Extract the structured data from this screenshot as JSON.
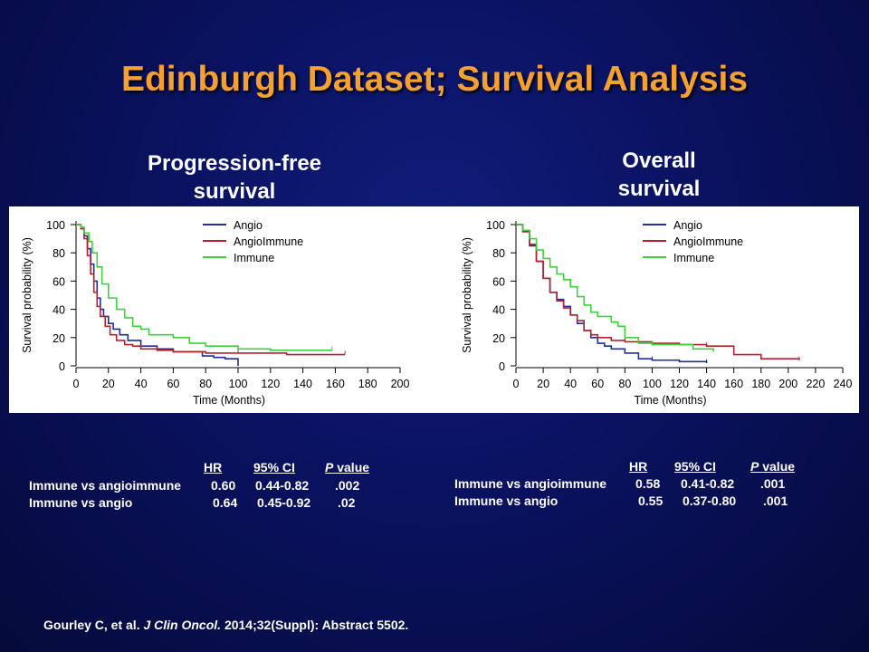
{
  "slide": {
    "title": "Edinburgh Dataset; Survival Analysis",
    "citation": {
      "authors": "Gourley C, et al.",
      "journal": "J Clin Oncol.",
      "details": "2014;32(Suppl): Abstract 5502."
    }
  },
  "panels": {
    "pfs": {
      "subtitle_line1": "Progression-free",
      "subtitle_line2": "survival"
    },
    "os": {
      "subtitle_line1": "Overall",
      "subtitle_line2": "survival"
    }
  },
  "stats_tables": {
    "pfs": {
      "headers": {
        "hr": "HR",
        "ci": "95% CI",
        "p_italic": "P",
        "p_rest": "value"
      },
      "rows": [
        {
          "label": "Immune vs angioimmune",
          "hr": "0.60",
          "ci": "0.44-0.82",
          "p": ".002"
        },
        {
          "label": "Immune vs angio",
          "hr": "0.64",
          "ci": "0.45-0.92",
          "p": ".02"
        }
      ]
    },
    "os": {
      "headers": {
        "hr": "HR",
        "ci": "95% CI",
        "p_italic": "P",
        "p_rest": "value"
      },
      "rows": [
        {
          "label": "Immune vs angioimmune",
          "hr": "0.58",
          "ci": "0.41-0.82",
          "p": ".001"
        },
        {
          "label": "Immune vs angio",
          "hr": "0.55",
          "ci": "0.37-0.80",
          "p": ".001"
        }
      ]
    }
  },
  "colors": {
    "title": "#f5a032",
    "angio": "#1f2f9e",
    "angioimmune": "#b3232e",
    "immune": "#3fcf3f"
  },
  "chart_data": [
    {
      "type": "line",
      "id": "pfs",
      "xlabel": "Time (Months)",
      "ylabel": "Survival probability (%)",
      "xlim": [
        0,
        200
      ],
      "ylim": [
        0,
        100
      ],
      "xticks": [
        0,
        20,
        40,
        60,
        80,
        100,
        120,
        140,
        160,
        180,
        200
      ],
      "yticks": [
        0,
        20,
        40,
        60,
        80,
        100
      ],
      "legend_position": "top-right",
      "series": [
        {
          "name": "Angio",
          "color_key": "angio",
          "x": [
            0,
            3,
            5,
            7,
            9,
            11,
            13,
            15,
            17,
            20,
            23,
            27,
            32,
            40,
            50,
            60,
            70,
            78,
            85,
            92,
            100
          ],
          "y": [
            100,
            98,
            92,
            83,
            72,
            60,
            48,
            40,
            35,
            30,
            26,
            22,
            18,
            14,
            12,
            10,
            10,
            7,
            6,
            5,
            0
          ]
        },
        {
          "name": "AngioImmune",
          "color_key": "angioimmune",
          "x": [
            0,
            3,
            5,
            7,
            9,
            11,
            13,
            15,
            18,
            21,
            25,
            30,
            35,
            40,
            50,
            60,
            80,
            100,
            130,
            150,
            166
          ],
          "y": [
            100,
            97,
            90,
            78,
            65,
            52,
            42,
            35,
            28,
            22,
            18,
            15,
            14,
            12,
            11,
            10,
            9,
            9,
            8,
            8,
            8
          ]
        },
        {
          "name": "Immune",
          "color_key": "immune",
          "x": [
            0,
            3,
            5,
            8,
            10,
            13,
            16,
            20,
            25,
            30,
            35,
            40,
            45,
            50,
            60,
            70,
            80,
            100,
            120,
            140,
            158
          ],
          "y": [
            100,
            98,
            94,
            88,
            80,
            70,
            58,
            48,
            40,
            34,
            28,
            26,
            22,
            22,
            20,
            16,
            14,
            12,
            11,
            11,
            11
          ]
        }
      ]
    },
    {
      "type": "line",
      "id": "os",
      "xlabel": "Time (Months)",
      "ylabel": "Survival probability (%)",
      "xlim": [
        0,
        240
      ],
      "ylim": [
        0,
        100
      ],
      "xticks": [
        0,
        20,
        40,
        60,
        80,
        100,
        120,
        140,
        160,
        180,
        200,
        220,
        240
      ],
      "yticks": [
        0,
        20,
        40,
        60,
        80,
        100
      ],
      "legend_position": "top-right",
      "series": [
        {
          "name": "Angio",
          "color_key": "angio",
          "x": [
            0,
            5,
            10,
            15,
            20,
            25,
            30,
            35,
            40,
            45,
            50,
            55,
            60,
            65,
            70,
            80,
            90,
            100,
            110,
            120,
            140
          ],
          "y": [
            100,
            95,
            85,
            74,
            62,
            52,
            47,
            42,
            36,
            30,
            25,
            20,
            16,
            14,
            12,
            9,
            5,
            4,
            4,
            3,
            2
          ]
        },
        {
          "name": "AngioImmune",
          "color_key": "angioimmune",
          "x": [
            0,
            5,
            10,
            15,
            20,
            25,
            30,
            35,
            40,
            45,
            50,
            55,
            60,
            70,
            80,
            100,
            120,
            140,
            160,
            180,
            208
          ],
          "y": [
            100,
            95,
            86,
            74,
            62,
            52,
            46,
            41,
            36,
            32,
            25,
            22,
            20,
            18,
            17,
            16,
            15,
            14,
            8,
            5,
            4
          ]
        },
        {
          "name": "Immune",
          "color_key": "immune",
          "x": [
            0,
            5,
            10,
            15,
            20,
            25,
            30,
            35,
            40,
            45,
            50,
            55,
            60,
            70,
            75,
            80,
            90,
            100,
            110,
            130,
            145
          ],
          "y": [
            100,
            96,
            90,
            82,
            76,
            70,
            65,
            61,
            56,
            49,
            43,
            38,
            35,
            31,
            28,
            20,
            16,
            15,
            15,
            12,
            10
          ]
        }
      ]
    }
  ]
}
